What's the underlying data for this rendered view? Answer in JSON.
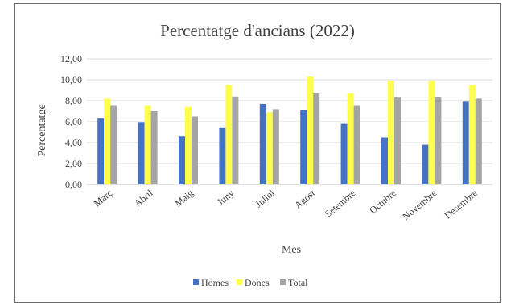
{
  "chart_data": {
    "type": "bar",
    "title": "Percentatge d'ancians (2022)",
    "xlabel": "Mes",
    "ylabel": "Percentatge",
    "ylim": [
      0,
      12
    ],
    "yticks": [
      "0,00",
      "2,00",
      "4,00",
      "6,00",
      "8,00",
      "10,00",
      "12,00"
    ],
    "categories": [
      "Març",
      "Abril",
      "Maig",
      "Juny",
      "Juliol",
      "Agost",
      "Setembre",
      "Octubre",
      "Novembre",
      "Desembre"
    ],
    "series": [
      {
        "name": "Homes",
        "color": "#4472c4",
        "values": [
          6.3,
          5.9,
          4.6,
          5.4,
          7.7,
          7.1,
          5.8,
          4.5,
          3.8,
          7.9
        ]
      },
      {
        "name": "Dones",
        "color": "#ffff4d",
        "values": [
          8.2,
          7.5,
          7.4,
          9.5,
          6.9,
          10.3,
          8.7,
          9.9,
          9.9,
          9.5
        ]
      },
      {
        "name": "Total",
        "color": "#a5a5a5",
        "values": [
          7.5,
          7.0,
          6.5,
          8.4,
          7.2,
          8.7,
          7.5,
          8.3,
          8.3,
          8.2
        ]
      }
    ],
    "grid": true,
    "legend_position": "bottom"
  }
}
